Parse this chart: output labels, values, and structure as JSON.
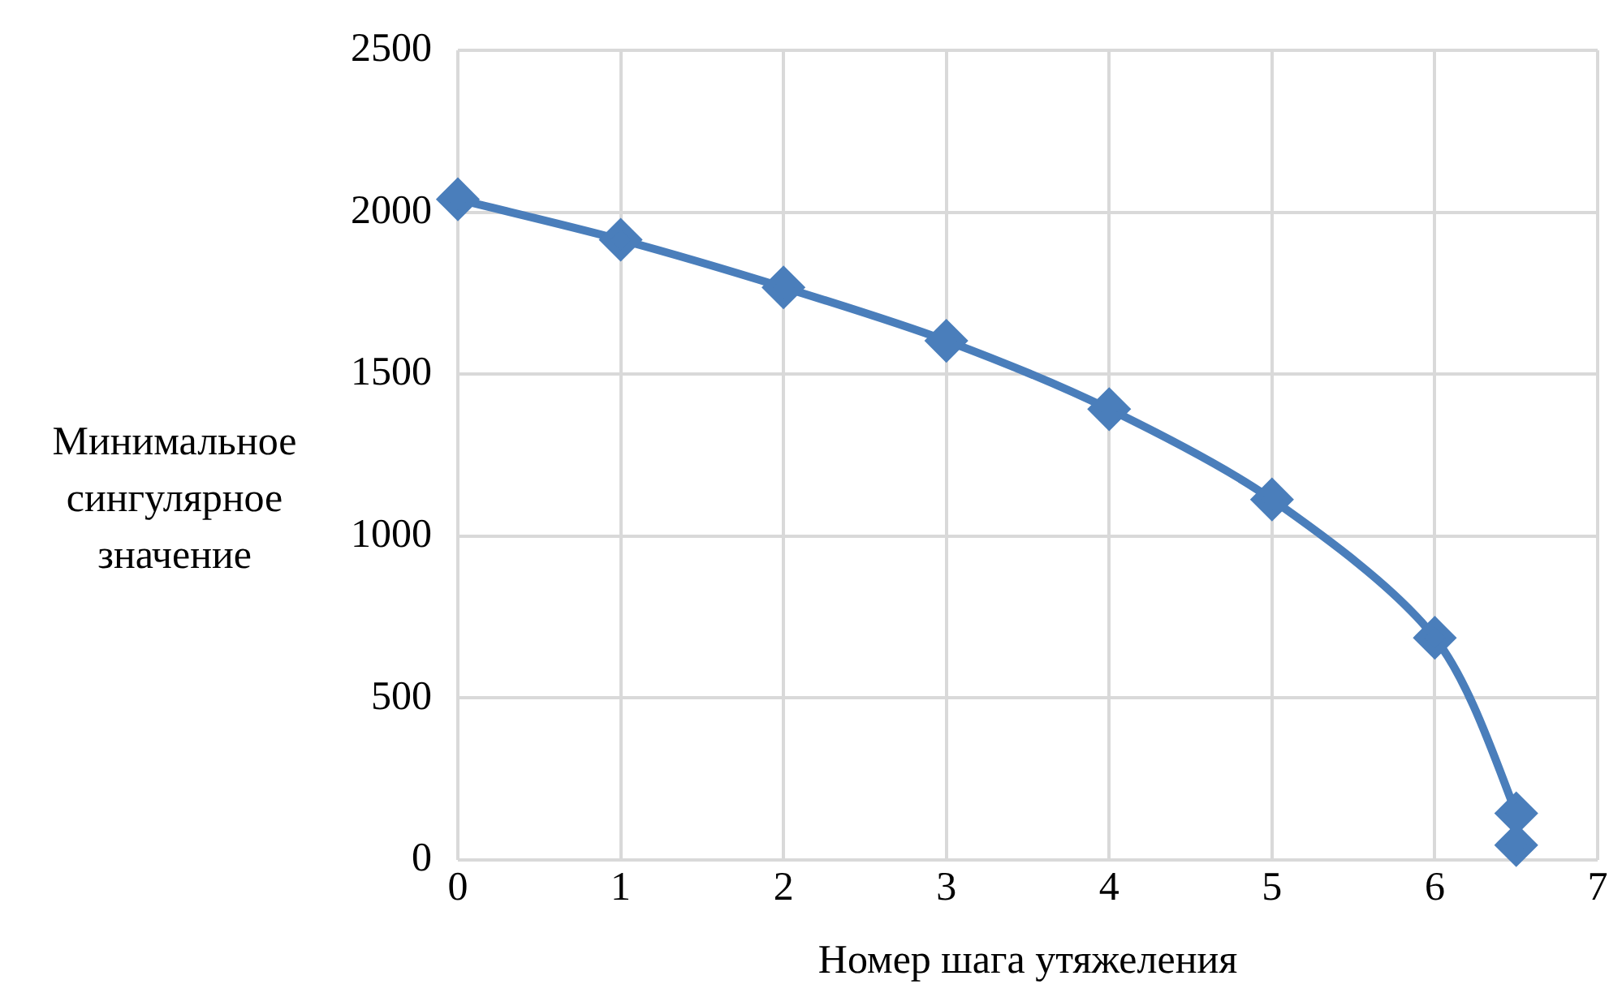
{
  "chart_data": {
    "type": "line",
    "xlabel": "Номер шага утяжеления",
    "ylabel": "Минимальное сингулярное значение",
    "series": [
      {
        "color": "#4a7ebb",
        "x": [
          0,
          1,
          2,
          3,
          4,
          5,
          6,
          6.5,
          6.5
        ],
        "values": [
          2040,
          1915,
          1768,
          1603,
          1392,
          1113,
          686,
          144,
          46
        ]
      }
    ],
    "xlim": [
      0,
      7
    ],
    "xticks": [
      0,
      1,
      2,
      3,
      4,
      5,
      6,
      7
    ],
    "ylim": [
      0,
      2500
    ],
    "yticks": [
      0,
      500,
      1000,
      1500,
      2000,
      2500
    ],
    "grid": true,
    "legend": false,
    "marker": "diamond",
    "line_style": "solid"
  }
}
